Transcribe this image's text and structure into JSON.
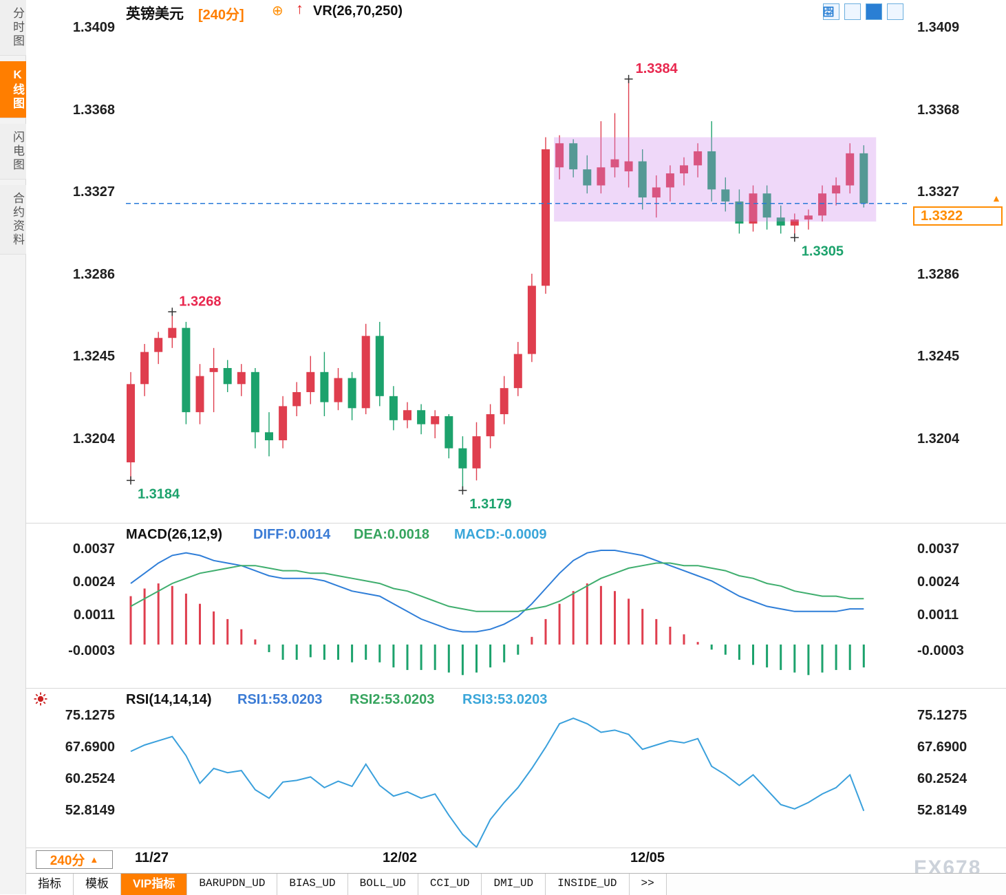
{
  "sidebar": {
    "tabs": [
      {
        "label": "分时图",
        "active": false
      },
      {
        "label": "K线图",
        "active": true
      },
      {
        "label": "闪电图",
        "active": false
      },
      {
        "label": "合约资料",
        "active": false
      }
    ]
  },
  "header": {
    "symbol": "英镑美元",
    "period": "[240分]",
    "plus_icon": "⊕",
    "up_arrow": "↑",
    "vr_label": "VR(26,70,250)"
  },
  "main_chart": {
    "y_labels": [
      "1.3409",
      "1.3368",
      "1.3327",
      "1.3286",
      "1.3245",
      "1.3204"
    ],
    "price_tag": {
      "value": "1.3322",
      "pointer": "▲"
    }
  },
  "macd_panel": {
    "title": "MACD(26,12,9)",
    "diff_label": "DIFF:0.0014",
    "dea_label": "DEA:0.0018",
    "macd_label": "MACD:-0.0009",
    "y_labels": [
      "0.0037",
      "0.0024",
      "0.0011",
      "-0.0003"
    ]
  },
  "rsi_panel": {
    "title": "RSI(14,14,14)",
    "rsi1_label": "RSI1:53.0203",
    "rsi2_label": "RSI2:53.0203",
    "rsi3_label": "RSI3:53.0203",
    "y_labels": [
      "75.1275",
      "67.6900",
      "60.2524",
      "52.8149"
    ]
  },
  "xaxis": {
    "labels": [
      {
        "text": "11/27"
      },
      {
        "text": "12/02"
      },
      {
        "text": "12/05"
      }
    ],
    "period_button": {
      "label": "240分",
      "arrow": "▲"
    }
  },
  "footer": {
    "tabs": [
      {
        "label": "指标",
        "active": false
      },
      {
        "label": "模板",
        "active": false
      },
      {
        "label": "VIP指标",
        "active": true
      },
      {
        "label": "BARUPDN_UD",
        "active": false
      },
      {
        "label": "BIAS_UD",
        "active": false
      },
      {
        "label": "BOLL_UD",
        "active": false
      },
      {
        "label": "CCI_UD",
        "active": false
      },
      {
        "label": "DMI_UD",
        "active": false
      },
      {
        "label": "INSIDE_UD",
        "active": false
      },
      {
        "label": ">>",
        "active": false
      }
    ],
    "watermark": "FX678"
  },
  "colors": {
    "up": "#df3e4e",
    "down": "#1ca26c",
    "accent_orange": "#ff7e00",
    "diff_blue": "#2f7ed8",
    "dea_green": "#3fae6e",
    "rsi_blue": "#3aa0dc",
    "dashed_blue": "#2779d8",
    "highlight_purple": "rgba(205,135,235,0.32)",
    "annotation_red": "#e8274e",
    "annotation_green": "#1ca26c"
  },
  "chart_data": [
    {
      "type": "candlestick",
      "title": "英镑美元 240分",
      "ylim": [
        1.3165,
        1.3425
      ],
      "y_ticks": [
        1.3409,
        1.3368,
        1.3327,
        1.3286,
        1.3245,
        1.3204
      ],
      "x_ticks": [
        "11/27",
        "12/02",
        "12/05"
      ],
      "current_price": 1.3322,
      "candles": [
        [
          1.3193,
          1.3238,
          1.3184,
          1.3232
        ],
        [
          1.3232,
          1.3252,
          1.3226,
          1.3248
        ],
        [
          1.3248,
          1.3258,
          1.3242,
          1.3255
        ],
        [
          1.3255,
          1.3268,
          1.325,
          1.326
        ],
        [
          1.326,
          1.3263,
          1.3212,
          1.3218
        ],
        [
          1.3218,
          1.3242,
          1.3212,
          1.3236
        ],
        [
          1.3238,
          1.325,
          1.3218,
          1.324
        ],
        [
          1.324,
          1.3244,
          1.3228,
          1.3232
        ],
        [
          1.3232,
          1.3242,
          1.3226,
          1.3238
        ],
        [
          1.3238,
          1.324,
          1.32,
          1.3208
        ],
        [
          1.3208,
          1.3218,
          1.3196,
          1.3204
        ],
        [
          1.3204,
          1.3226,
          1.32,
          1.3221
        ],
        [
          1.3221,
          1.3233,
          1.3216,
          1.3228
        ],
        [
          1.3228,
          1.3246,
          1.3222,
          1.3238
        ],
        [
          1.3238,
          1.3248,
          1.3216,
          1.3223
        ],
        [
          1.3223,
          1.324,
          1.3219,
          1.3235
        ],
        [
          1.3235,
          1.3238,
          1.3214,
          1.322
        ],
        [
          1.322,
          1.3262,
          1.3217,
          1.3256
        ],
        [
          1.3256,
          1.3263,
          1.3221,
          1.3226
        ],
        [
          1.3226,
          1.3231,
          1.3209,
          1.3214
        ],
        [
          1.3214,
          1.3223,
          1.321,
          1.3219
        ],
        [
          1.3219,
          1.3222,
          1.3207,
          1.3212
        ],
        [
          1.3212,
          1.3219,
          1.3205,
          1.3216
        ],
        [
          1.3216,
          1.3217,
          1.3195,
          1.32
        ],
        [
          1.32,
          1.3206,
          1.3179,
          1.319
        ],
        [
          1.319,
          1.3213,
          1.3184,
          1.3206
        ],
        [
          1.3206,
          1.3222,
          1.32,
          1.3217
        ],
        [
          1.3217,
          1.3236,
          1.3212,
          1.323
        ],
        [
          1.323,
          1.3253,
          1.3226,
          1.3247
        ],
        [
          1.3247,
          1.3287,
          1.3243,
          1.3281
        ],
        [
          1.3281,
          1.3355,
          1.3277,
          1.3349
        ],
        [
          1.334,
          1.3356,
          1.3334,
          1.3352
        ],
        [
          1.3352,
          1.3354,
          1.3335,
          1.3339
        ],
        [
          1.3339,
          1.3346,
          1.3327,
          1.3331
        ],
        [
          1.3331,
          1.3363,
          1.3327,
          1.334
        ],
        [
          1.334,
          1.3367,
          1.3335,
          1.3344
        ],
        [
          1.3338,
          1.3384,
          1.333,
          1.3343
        ],
        [
          1.3343,
          1.3349,
          1.3319,
          1.3325
        ],
        [
          1.3325,
          1.3336,
          1.3315,
          1.333
        ],
        [
          1.333,
          1.3341,
          1.3323,
          1.3337
        ],
        [
          1.3337,
          1.3345,
          1.3331,
          1.3341
        ],
        [
          1.3341,
          1.3352,
          1.3335,
          1.3348
        ],
        [
          1.3348,
          1.3363,
          1.3323,
          1.3329
        ],
        [
          1.3329,
          1.3335,
          1.3318,
          1.3323
        ],
        [
          1.3323,
          1.3329,
          1.3307,
          1.3312
        ],
        [
          1.3312,
          1.3331,
          1.3308,
          1.3327
        ],
        [
          1.3327,
          1.3331,
          1.3309,
          1.3315
        ],
        [
          1.3315,
          1.3321,
          1.3307,
          1.3311
        ],
        [
          1.3311,
          1.3317,
          1.3305,
          1.3314
        ],
        [
          1.3314,
          1.3319,
          1.3309,
          1.3316
        ],
        [
          1.3316,
          1.3331,
          1.3313,
          1.3327
        ],
        [
          1.3327,
          1.3335,
          1.3321,
          1.3331
        ],
        [
          1.3331,
          1.3352,
          1.3327,
          1.3347
        ],
        [
          1.3347,
          1.3351,
          1.332,
          1.3322
        ]
      ],
      "annotations": [
        {
          "label": "1.3384",
          "price": 1.3384,
          "index": 36,
          "position": "above",
          "color": "red"
        },
        {
          "label": "1.3268",
          "price": 1.3268,
          "index": 3,
          "position": "above",
          "color": "red"
        },
        {
          "label": "1.3184",
          "price": 1.3184,
          "index": 0,
          "position": "below",
          "color": "green"
        },
        {
          "label": "1.3179",
          "price": 1.3179,
          "index": 24,
          "position": "below",
          "color": "green"
        },
        {
          "label": "1.3305",
          "price": 1.3305,
          "index": 48,
          "position": "below",
          "color": "green"
        }
      ],
      "highlight_box": {
        "start_index": 31,
        "end_index": 53,
        "price_top": 1.3355,
        "price_bottom": 1.3313
      }
    },
    {
      "type": "bar",
      "name": "MACD",
      "y_ticks": [
        0.0037,
        0.0024,
        0.0011,
        -0.0003
      ],
      "histogram": [
        0.0019,
        0.0022,
        0.0024,
        0.0023,
        0.002,
        0.0016,
        0.0013,
        0.001,
        0.0006,
        0.0002,
        -0.0003,
        -0.0006,
        -0.0006,
        -0.0005,
        -0.0006,
        -0.0006,
        -0.0007,
        -0.0006,
        -0.0007,
        -0.0009,
        -0.001,
        -0.001,
        -0.001,
        -0.0011,
        -0.0012,
        -0.0011,
        -0.0009,
        -0.0007,
        -0.0004,
        0.0003,
        0.001,
        0.0016,
        0.0021,
        0.0024,
        0.0023,
        0.0021,
        0.0018,
        0.0014,
        0.001,
        0.0007,
        0.0004,
        0.0001,
        -0.0002,
        -0.0004,
        -0.0006,
        -0.0008,
        -0.0009,
        -0.001,
        -0.0011,
        -0.0012,
        -0.0011,
        -0.001,
        -0.001,
        -0.0009
      ],
      "diff": [
        0.0024,
        0.0028,
        0.0032,
        0.0035,
        0.0036,
        0.0035,
        0.0033,
        0.0032,
        0.0031,
        0.0029,
        0.0027,
        0.0026,
        0.0026,
        0.0026,
        0.0025,
        0.0023,
        0.0021,
        0.002,
        0.0019,
        0.0016,
        0.0013,
        0.001,
        0.0008,
        0.0006,
        0.0005,
        0.0005,
        0.0006,
        0.0008,
        0.0011,
        0.0016,
        0.0022,
        0.0028,
        0.0033,
        0.0036,
        0.0037,
        0.0037,
        0.0036,
        0.0035,
        0.0033,
        0.0031,
        0.0029,
        0.0027,
        0.0025,
        0.0022,
        0.0019,
        0.0017,
        0.0015,
        0.0014,
        0.0013,
        0.0013,
        0.0013,
        0.0013,
        0.0014,
        0.0014
      ],
      "dea": [
        0.0015,
        0.0018,
        0.0021,
        0.0024,
        0.0026,
        0.0028,
        0.0029,
        0.003,
        0.0031,
        0.0031,
        0.003,
        0.0029,
        0.0029,
        0.0028,
        0.0028,
        0.0027,
        0.0026,
        0.0025,
        0.0024,
        0.0022,
        0.0021,
        0.0019,
        0.0017,
        0.0015,
        0.0014,
        0.0013,
        0.0013,
        0.0013,
        0.0013,
        0.0014,
        0.0015,
        0.0017,
        0.002,
        0.0023,
        0.0026,
        0.0028,
        0.003,
        0.0031,
        0.0032,
        0.0032,
        0.0031,
        0.0031,
        0.003,
        0.0029,
        0.0027,
        0.0026,
        0.0024,
        0.0023,
        0.0021,
        0.002,
        0.0019,
        0.0019,
        0.0018,
        0.0018
      ]
    },
    {
      "type": "line",
      "name": "RSI",
      "y_ticks": [
        75.1275,
        67.69,
        60.2524,
        52.8149
      ],
      "values": [
        67.0,
        68.5,
        69.5,
        70.5,
        66.0,
        59.5,
        63.0,
        62.0,
        62.5,
        58.0,
        56.0,
        59.8,
        60.2,
        61.0,
        58.5,
        60.0,
        58.8,
        64.0,
        59.0,
        56.5,
        57.5,
        56.0,
        57.0,
        52.0,
        47.5,
        44.5,
        51.0,
        55.0,
        58.5,
        63.0,
        68.0,
        73.5,
        74.8,
        73.5,
        71.5,
        72.0,
        71.0,
        67.5,
        68.5,
        69.5,
        69.0,
        70.0,
        63.5,
        61.5,
        59.0,
        61.5,
        58.0,
        54.5,
        53.5,
        55.0,
        57.0,
        58.5,
        61.5,
        53.0203
      ]
    }
  ]
}
